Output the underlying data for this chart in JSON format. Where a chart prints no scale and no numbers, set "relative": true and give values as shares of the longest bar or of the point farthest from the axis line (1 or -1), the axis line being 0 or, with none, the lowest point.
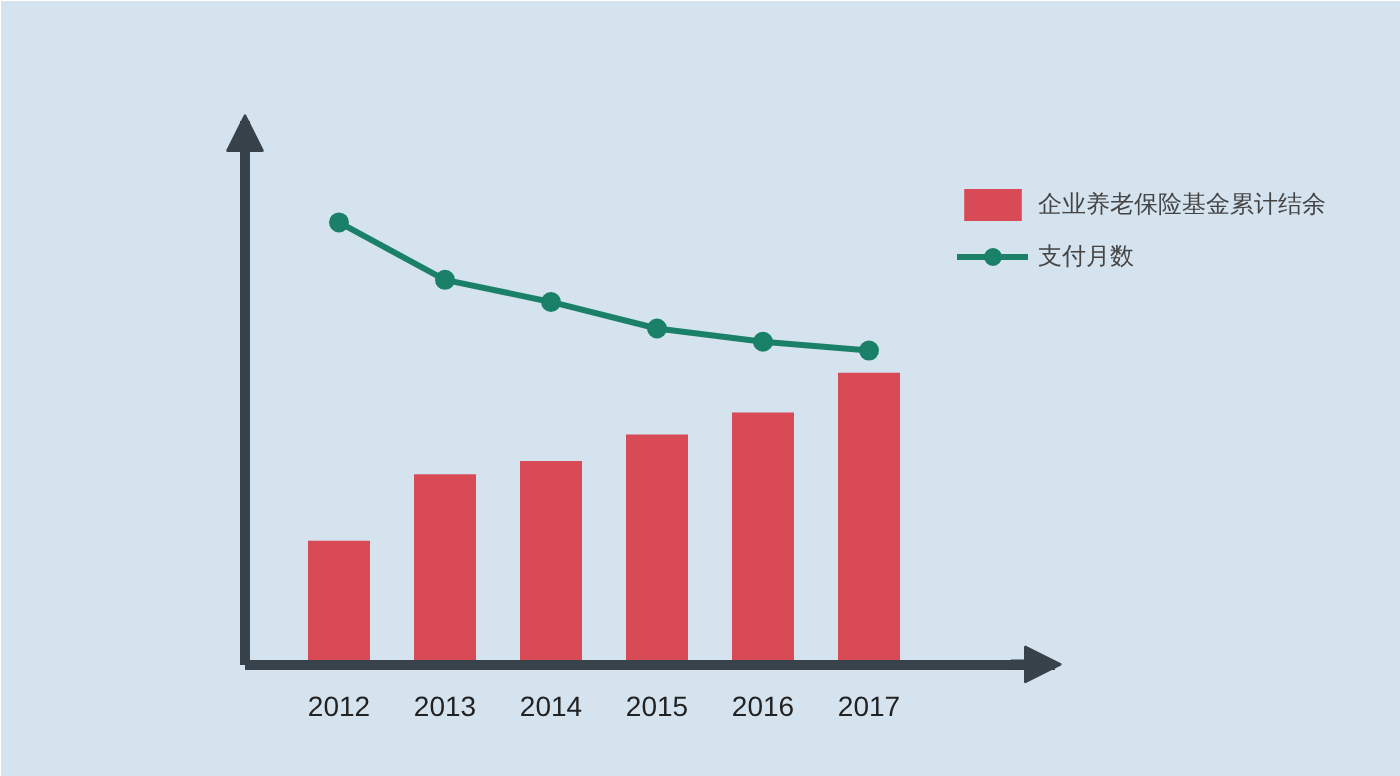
{
  "chart_data": {
    "type": "bar",
    "relative": true,
    "categories": [
      "2012",
      "2013",
      "2014",
      "2015",
      "2016",
      "2017"
    ],
    "series": [
      {
        "name": "企业养老保险基金累计结余",
        "color": "#d94a57",
        "values": [
          0.28,
          0.43,
          0.46,
          0.52,
          0.57,
          0.66
        ]
      },
      {
        "name": "支付月数",
        "type": "line",
        "color": "#1a8068",
        "values": [
          1,
          0.87,
          0.82,
          0.76,
          0.73,
          0.71
        ]
      }
    ],
    "marker": "circle",
    "line_style": "solid",
    "legend": "top right",
    "grid": false
  }
}
